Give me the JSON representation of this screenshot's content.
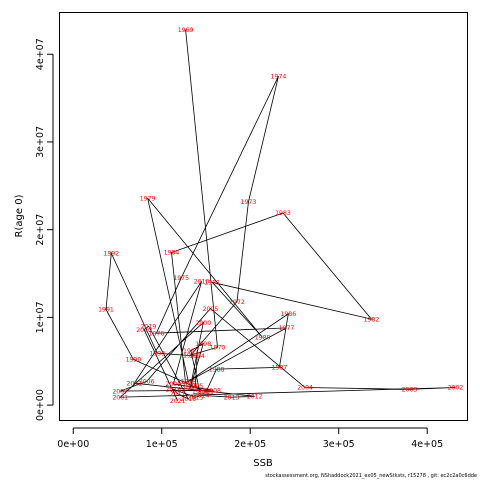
{
  "chart_data": {
    "type": "line",
    "xlabel": "SSB",
    "ylabel": "R(age 0)",
    "xlim": [
      -15000,
      445000
    ],
    "ylim": [
      -1700000,
      44700000
    ],
    "x_ticks": [
      0,
      100000,
      200000,
      300000,
      400000
    ],
    "x_tick_labels": [
      "0e+00",
      "1e+05",
      "2e+05",
      "3e+05",
      "4e+05"
    ],
    "y_ticks": [
      0,
      10000000,
      20000000,
      30000000,
      40000000
    ],
    "y_tick_labels": [
      "0e+00",
      "1e+07",
      "2e+07",
      "3e+07",
      "4e+07"
    ],
    "grid": false,
    "line_color": "#000000",
    "label_color": "#ff0000",
    "points": [
      {
        "year": "1969",
        "x": 127000,
        "y": 42800000
      },
      {
        "year": "1970",
        "x": 163000,
        "y": 6600000
      },
      {
        "year": "1971",
        "x": 133000,
        "y": 5700000
      },
      {
        "year": "1972",
        "x": 185000,
        "y": 11800000
      },
      {
        "year": "1973",
        "x": 198000,
        "y": 23200000
      },
      {
        "year": "1974",
        "x": 232000,
        "y": 37500000
      },
      {
        "year": "1975",
        "x": 122000,
        "y": 14500000
      },
      {
        "year": "1976",
        "x": 94000,
        "y": 8200000
      },
      {
        "year": "1977",
        "x": 241000,
        "y": 8800000
      },
      {
        "year": "1978",
        "x": 130000,
        "y": 2700000
      },
      {
        "year": "1979",
        "x": 84000,
        "y": 23600000
      },
      {
        "year": "1980",
        "x": 214000,
        "y": 7700000
      },
      {
        "year": "1981",
        "x": 157000,
        "y": 14000000
      },
      {
        "year": "1982",
        "x": 337000,
        "y": 9800000
      },
      {
        "year": "1983",
        "x": 237000,
        "y": 21900000
      },
      {
        "year": "1984",
        "x": 111000,
        "y": 17400000
      },
      {
        "year": "1985",
        "x": 127000,
        "y": 2500000
      },
      {
        "year": "1986",
        "x": 243000,
        "y": 10400000
      },
      {
        "year": "1987",
        "x": 233000,
        "y": 4300000
      },
      {
        "year": "1988",
        "x": 162000,
        "y": 4100000
      },
      {
        "year": "1989",
        "x": 150000,
        "y": 1500000
      },
      {
        "year": "1990",
        "x": 68000,
        "y": 5200000
      },
      {
        "year": "1991",
        "x": 37000,
        "y": 10900000
      },
      {
        "year": "1992",
        "x": 43000,
        "y": 17300000
      },
      {
        "year": "1993",
        "x": 95000,
        "y": 5900000
      },
      {
        "year": "1994",
        "x": 140000,
        "y": 5600000
      },
      {
        "year": "1995",
        "x": 138000,
        "y": 2200000
      },
      {
        "year": "1996",
        "x": 143000,
        "y": 1500000
      },
      {
        "year": "1997",
        "x": 133000,
        "y": 6200000
      },
      {
        "year": "1998",
        "x": 147000,
        "y": 7000000
      },
      {
        "year": "1999",
        "x": 132000,
        "y": 1900000
      },
      {
        "year": "2000",
        "x": 147000,
        "y": 9400000
      },
      {
        "year": "2001",
        "x": 53000,
        "y": 900000
      },
      {
        "year": "2002",
        "x": 432000,
        "y": 2000000
      },
      {
        "year": "2003",
        "x": 380000,
        "y": 1800000
      },
      {
        "year": "2004",
        "x": 262000,
        "y": 2000000
      },
      {
        "year": "2005",
        "x": 155000,
        "y": 11000000
      },
      {
        "year": "2006",
        "x": 83000,
        "y": 2700000
      },
      {
        "year": "2007",
        "x": 53000,
        "y": 1600000
      },
      {
        "year": "2008",
        "x": 158000,
        "y": 1700000
      },
      {
        "year": "2009",
        "x": 113000,
        "y": 2400000
      },
      {
        "year": "2010",
        "x": 145000,
        "y": 14100000
      },
      {
        "year": "2011",
        "x": 69000,
        "y": 2500000
      },
      {
        "year": "2012",
        "x": 205000,
        "y": 1000000
      },
      {
        "year": "2013",
        "x": 179000,
        "y": 900000
      },
      {
        "year": "2014",
        "x": 145000,
        "y": 1100000
      },
      {
        "year": "2015",
        "x": 138000,
        "y": 900000
      },
      {
        "year": "2016",
        "x": 113000,
        "y": 1800000
      },
      {
        "year": "2017",
        "x": 118000,
        "y": 1300000
      },
      {
        "year": "2018",
        "x": 130000,
        "y": 700000
      },
      {
        "year": "2019",
        "x": 85000,
        "y": 9000000
      },
      {
        "year": "2020",
        "x": 80000,
        "y": 8600000
      },
      {
        "year": "2021",
        "x": 118000,
        "y": 500000
      }
    ]
  },
  "footnote": "stockassessment.org, NShaddock2021_ex05_newStksts, r15278 , git: ec2c2a0c6dde"
}
